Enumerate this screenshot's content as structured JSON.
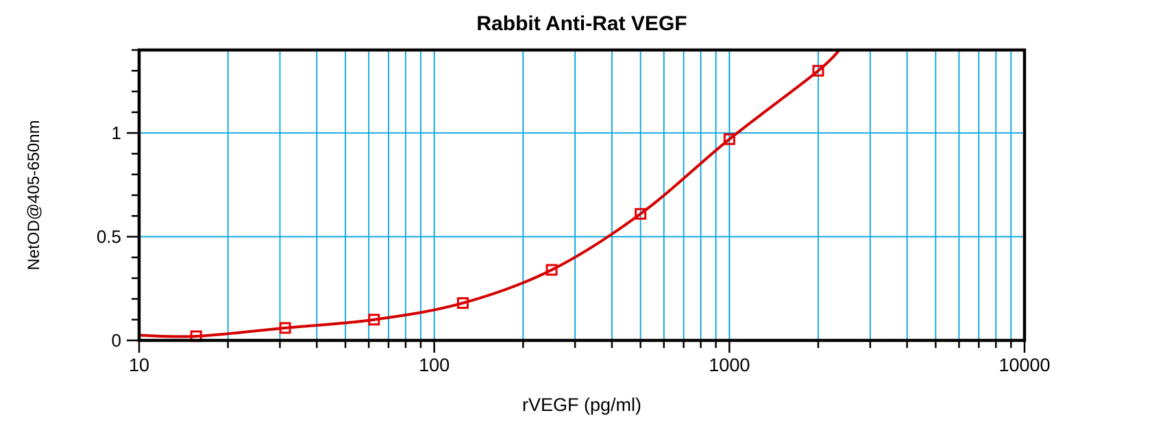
{
  "chart_data": {
    "type": "line",
    "title": "Rabbit Anti-Rat VEGF",
    "xlabel": "rVEGF (pg/ml)",
    "ylabel": "NetOD@405-650nm",
    "x_scale": "log",
    "xlim": [
      10,
      10000
    ],
    "ylim": [
      0,
      1.4
    ],
    "x_major_ticks": [
      10,
      100,
      1000,
      10000
    ],
    "x_major_tick_labels": [
      "10",
      "100",
      "1000",
      "10000"
    ],
    "x_minor_ticks_per_decade": [
      2,
      3,
      4,
      5,
      6,
      7,
      8,
      9
    ],
    "y_major_ticks": [
      0,
      0.5,
      1
    ],
    "y_major_tick_labels": [
      "0",
      "0.5",
      "1"
    ],
    "y_minor_tick_step": 0.1,
    "grid": {
      "vertical": "all log minor positions plus decades 100 and 1000",
      "horizontal_at": [
        0.5,
        1.0
      ],
      "color": "#00a3e2"
    },
    "legend": "none",
    "series": [
      {
        "name": "standard-curve",
        "marker": "open-square",
        "x": [
          15.6,
          31.25,
          62.5,
          125,
          250,
          500,
          1000,
          2000
        ],
        "y": [
          0.02,
          0.06,
          0.1,
          0.18,
          0.34,
          0.61,
          0.97,
          1.3
        ]
      }
    ],
    "curve": {
      "start": [
        10,
        0.025
      ],
      "end": [
        2450,
        1.43
      ],
      "note": "smooth sigmoid fit, clipped at top of plot area"
    },
    "colors": {
      "curve": "#d40000",
      "marker": "#e60000",
      "grid": "#00a3e2",
      "axis": "#000000",
      "text": "#000000",
      "background": "#ffffff"
    }
  }
}
